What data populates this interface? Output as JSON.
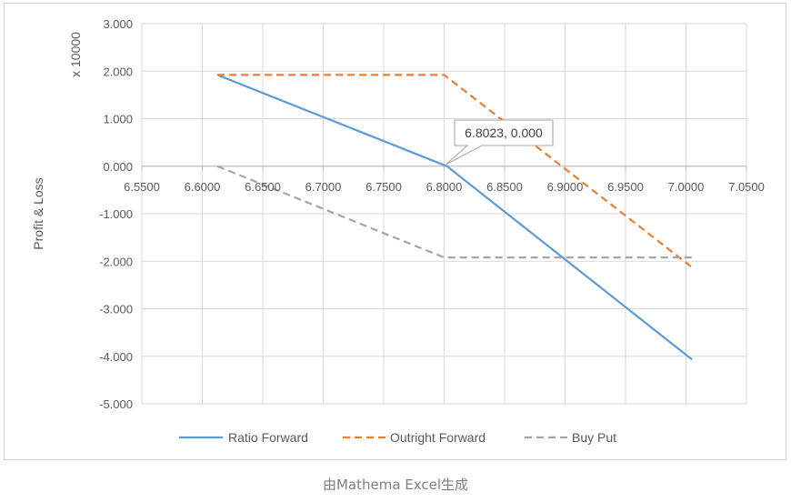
{
  "caption": "由Mathema Excel生成",
  "chart_data": {
    "type": "line",
    "xlim": [
      6.55,
      7.05
    ],
    "ylim": [
      -5,
      3
    ],
    "x_ticks": [
      "6.5500",
      "6.6000",
      "6.6500",
      "6.7000",
      "6.7500",
      "6.8000",
      "6.8500",
      "6.9000",
      "6.9500",
      "7.0000",
      "7.0500"
    ],
    "y_ticks": [
      "3.000",
      "2.000",
      "1.000",
      "0.000",
      "-1.000",
      "-2.000",
      "-3.000",
      "-4.000",
      "-5.000"
    ],
    "ylabel": "Profit & Loss",
    "y_multiplier_label": "x 10000",
    "grid": true,
    "legend_position": "bottom",
    "series": [
      {
        "name": "Ratio Forward",
        "color": "#5b9bd5",
        "dash": "solid",
        "points": [
          [
            6.6125,
            1.92
          ],
          [
            6.8023,
            0.0
          ],
          [
            7.005,
            -4.07
          ]
        ]
      },
      {
        "name": "Outright Forward",
        "color": "#ed7d31",
        "dash": "dashed",
        "points": [
          [
            6.6125,
            1.92
          ],
          [
            6.8,
            1.92
          ],
          [
            7.005,
            -2.13
          ]
        ]
      },
      {
        "name": "Buy Put",
        "color": "#a5a5a5",
        "dash": "dashed",
        "points": [
          [
            6.6125,
            0.0
          ],
          [
            6.8,
            -1.92
          ],
          [
            7.005,
            -1.92
          ]
        ]
      }
    ],
    "annotations": [
      {
        "text": "6.8023, 0.000",
        "x": 6.8023,
        "y": 0.0
      }
    ]
  }
}
